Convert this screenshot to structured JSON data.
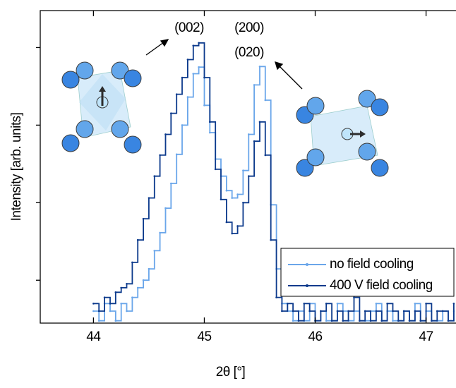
{
  "chart_data": {
    "type": "line",
    "x_label": "2θ [°]",
    "y_label": "Intensity [arb. units]",
    "log_y": true,
    "legend": "lower right",
    "xlim": [
      43.52,
      47.27
    ],
    "xticks": [
      44,
      45,
      46,
      47
    ],
    "ylim": [
      2.8,
      30000
    ],
    "yticks": [
      10,
      100,
      1000,
      10000
    ],
    "annotations": [
      "(002)",
      "(200)",
      "(020)"
    ],
    "x": [
      44.0,
      44.05,
      44.1,
      44.15,
      44.2,
      44.25,
      44.3,
      44.35,
      44.4,
      44.45,
      44.5,
      44.55,
      44.6,
      44.65,
      44.7,
      44.75,
      44.8,
      44.85,
      44.9,
      44.95,
      45.0,
      45.05,
      45.1,
      45.15,
      45.2,
      45.25,
      45.3,
      45.35,
      45.4,
      45.45,
      45.5,
      45.55,
      45.6,
      45.65,
      45.7,
      45.75,
      45.8,
      45.85,
      45.9,
      45.95,
      46.0,
      46.05,
      46.1,
      46.15,
      46.2,
      46.25,
      46.3,
      46.35,
      46.4,
      46.45,
      46.5,
      46.55,
      46.6,
      46.65,
      46.7,
      46.75,
      46.8,
      46.85,
      46.9,
      46.95,
      47.0,
      47.05,
      47.1,
      47.15,
      47.2,
      47.25
    ],
    "series": [
      {
        "name": "no field cooling",
        "color": "#6aa6ea",
        "values": [
          4,
          3,
          5,
          4,
          3,
          5,
          4,
          6,
          8,
          10,
          14,
          24,
          41,
          85,
          177,
          420,
          1000,
          2300,
          4600,
          5600,
          1800,
          800,
          365,
          220,
          143,
          115,
          128,
          260,
          760,
          3300,
          5700,
          2100,
          94,
          14,
          5,
          4,
          3,
          4,
          3,
          5,
          3,
          4,
          3,
          3,
          5,
          4,
          3,
          4,
          3,
          3,
          4,
          5,
          3,
          4,
          3,
          3,
          4,
          3,
          5,
          3,
          4,
          3,
          3,
          4,
          3,
          4
        ]
      },
      {
        "name": "400 V field cooling",
        "color": "#0c3a8c",
        "values": [
          5,
          4,
          6,
          5,
          7,
          8,
          9,
          17,
          33,
          62,
          115,
          220,
          410,
          760,
          1420,
          2500,
          4100,
          7000,
          10600,
          11500,
          4100,
          1100,
          270,
          110,
          56,
          40,
          50,
          100,
          220,
          620,
          1100,
          410,
          33,
          6,
          4,
          5,
          4,
          3,
          5,
          4,
          3,
          4,
          5,
          3,
          4,
          3,
          4,
          6,
          3,
          4,
          3,
          4,
          3,
          5,
          4,
          3,
          4,
          3,
          4,
          3,
          5,
          3,
          4,
          4,
          3,
          5
        ]
      }
    ]
  }
}
